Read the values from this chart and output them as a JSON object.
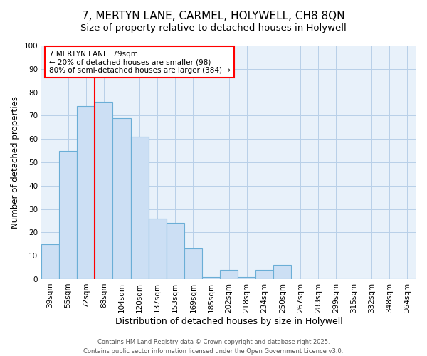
{
  "title": "7, MERTYN LANE, CARMEL, HOLYWELL, CH8 8QN",
  "subtitle": "Size of property relative to detached houses in Holywell",
  "xlabel": "Distribution of detached houses by size in Holywell",
  "ylabel": "Number of detached properties",
  "categories": [
    "39sqm",
    "55sqm",
    "72sqm",
    "88sqm",
    "104sqm",
    "120sqm",
    "137sqm",
    "153sqm",
    "169sqm",
    "185sqm",
    "202sqm",
    "218sqm",
    "234sqm",
    "250sqm",
    "267sqm",
    "283sqm",
    "299sqm",
    "315sqm",
    "332sqm",
    "348sqm",
    "364sqm"
  ],
  "values": [
    15,
    55,
    74,
    76,
    69,
    61,
    26,
    24,
    13,
    1,
    4,
    1,
    4,
    6,
    0,
    0,
    0,
    0,
    0,
    0,
    0
  ],
  "bar_color": "#ccdff4",
  "bar_edge_color": "#6aaed6",
  "bar_edge_width": 0.8,
  "red_line_x": 2.5,
  "annotation_line1": "7 MERTYN LANE: 79sqm",
  "annotation_line2": "← 20% of detached houses are smaller (98)",
  "annotation_line3": "80% of semi-detached houses are larger (384) →",
  "annotation_box_color": "white",
  "annotation_box_edge": "red",
  "red_line_color": "red",
  "ylim": [
    0,
    100
  ],
  "grid_color": "#b8cfe8",
  "background_color": "#e8f1fa",
  "footer_line1": "Contains HM Land Registry data © Crown copyright and database right 2025.",
  "footer_line2": "Contains public sector information licensed under the Open Government Licence v3.0.",
  "title_fontsize": 11,
  "subtitle_fontsize": 9.5,
  "tick_fontsize": 7.5,
  "ylabel_fontsize": 8.5,
  "xlabel_fontsize": 9,
  "footer_fontsize": 6,
  "annotation_fontsize": 7.5
}
